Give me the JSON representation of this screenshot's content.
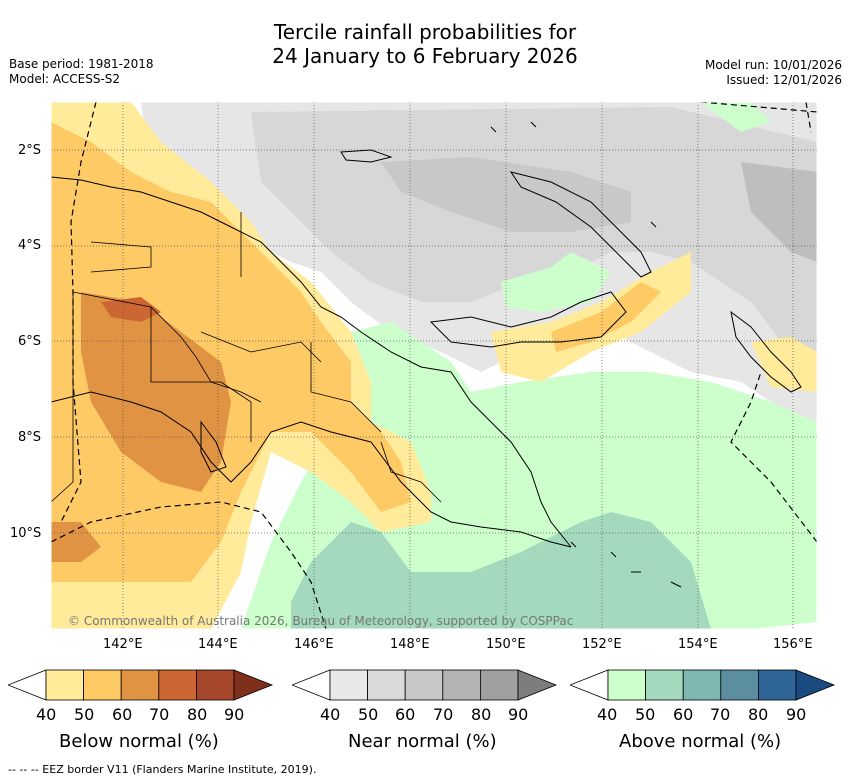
{
  "header": {
    "title_line1": "Tercile rainfall probabilities for",
    "title_line2": "24 January to 6 February 2026",
    "base_period": "Base period: 1981-2018",
    "model": "Model: ACCESS-S2",
    "model_run": "Model run: 10/01/2026",
    "issued": "Issued: 12/01/2026"
  },
  "map": {
    "copyright": "© Commonwealth of Australia 2026, Bureau of Meteorology, supported by COSPPac",
    "lat_ticks": [
      "2°S",
      "4°S",
      "6°S",
      "8°S",
      "10°S"
    ],
    "lon_ticks": [
      "142°E",
      "144°E",
      "146°E",
      "148°E",
      "150°E",
      "152°E",
      "154°E",
      "156°E"
    ]
  },
  "colorbars": [
    {
      "label": "Below normal (%)",
      "ticks": [
        "40",
        "50",
        "60",
        "70",
        "80",
        "90"
      ],
      "colors": [
        "#ffffff",
        "#ffeb99",
        "#fdca66",
        "#e09443",
        "#cc6633",
        "#a6462a",
        "#7f2f1a"
      ]
    },
    {
      "label": "Near normal (%)",
      "ticks": [
        "40",
        "50",
        "60",
        "70",
        "80",
        "90"
      ],
      "colors": [
        "#ffffff",
        "#e8e8e8",
        "#d9d9d9",
        "#c8c8c8",
        "#b4b4b4",
        "#a0a0a0",
        "#7d7d7d"
      ]
    },
    {
      "label": "Above normal (%)",
      "ticks": [
        "40",
        "50",
        "60",
        "70",
        "80",
        "90"
      ],
      "colors": [
        "#ffffff",
        "#ccffcc",
        "#a3d9bc",
        "#7fb8b0",
        "#5b8fa0",
        "#2f6496",
        "#1a4a80"
      ]
    }
  ],
  "footer": {
    "eez_note": "--  --  -- EEZ border V11 (Flanders Marine Institute, 2019)."
  }
}
